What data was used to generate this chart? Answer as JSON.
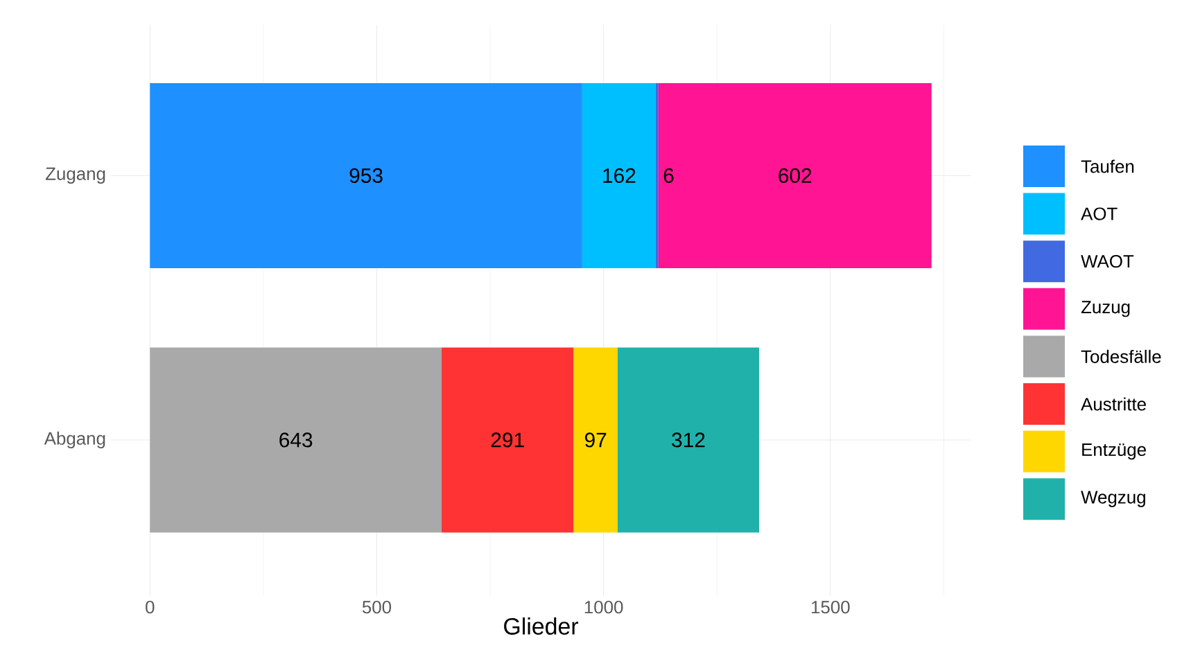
{
  "chart_data": {
    "type": "bar",
    "orientation": "horizontal",
    "stacked": true,
    "xlabel": "Glieder",
    "categories": [
      "Zugang",
      "Abgang"
    ],
    "series": [
      {
        "name": "Taufen",
        "color": "#1e90ff",
        "values": [
          953,
          null
        ]
      },
      {
        "name": "AOT",
        "color": "#00bfff",
        "values": [
          162,
          null
        ]
      },
      {
        "name": "WAOT",
        "color": "#4169e1",
        "values": [
          6,
          null
        ]
      },
      {
        "name": "Zuzug",
        "color": "#ff1493",
        "values": [
          602,
          null
        ]
      },
      {
        "name": "Todesfälle",
        "color": "#a9a9a9",
        "values": [
          null,
          643
        ]
      },
      {
        "name": "Austritte",
        "color": "#ff3333",
        "values": [
          null,
          291
        ]
      },
      {
        "name": "Entzüge",
        "color": "#ffd700",
        "values": [
          null,
          97
        ]
      },
      {
        "name": "Wegzug",
        "color": "#20b2aa",
        "values": [
          null,
          312
        ]
      }
    ],
    "xlim": [
      -86,
      1809
    ],
    "xticks": [
      0,
      500,
      1000,
      1500
    ],
    "grid": true,
    "legend": "right",
    "data_labels": true
  }
}
